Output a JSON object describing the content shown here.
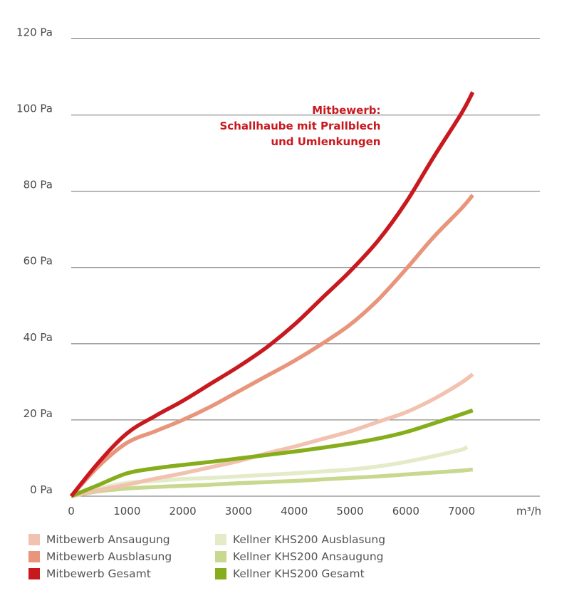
{
  "chart_data": {
    "type": "line",
    "title": "",
    "xlabel": "",
    "ylabel": "",
    "x_unit": "m³/h",
    "xlim": [
      0,
      7500
    ],
    "ylim": [
      -7,
      120
    ],
    "y_ticks": [
      {
        "value": 0,
        "label": "0 Pa"
      },
      {
        "value": 20,
        "label": "20 Pa"
      },
      {
        "value": 40,
        "label": "40 Pa"
      },
      {
        "value": 60,
        "label": "60 Pa"
      },
      {
        "value": 80,
        "label": "80 Pa"
      },
      {
        "value": 100,
        "label": "100 Pa"
      },
      {
        "value": 120,
        "label": "120 Pa"
      }
    ],
    "gridlines_y": [
      -7,
      13,
      33,
      53,
      73,
      93,
      113
    ],
    "x_ticks": [
      {
        "value": 0,
        "label": "0"
      },
      {
        "value": 1000,
        "label": "1000"
      },
      {
        "value": 2000,
        "label": "2000"
      },
      {
        "value": 3000,
        "label": "3000"
      },
      {
        "value": 4000,
        "label": "4000"
      },
      {
        "value": 5000,
        "label": "5000"
      },
      {
        "value": 6000,
        "label": "6000"
      },
      {
        "value": 7000,
        "label": "7000"
      }
    ],
    "grid": true,
    "legend_position": "bottom",
    "annotation": {
      "lines": [
        "Mitbewerb:",
        "Schallhaube mit Prallblech",
        "und Umlenkungen"
      ],
      "x": 5600,
      "y": 97
    },
    "series": [
      {
        "name": "Mitbewerb Ansaugung",
        "color": "#f2c2b0",
        "x": [
          0,
          500,
          1000,
          1500,
          2000,
          2500,
          3000,
          3500,
          4000,
          4500,
          5000,
          5500,
          6000,
          6500,
          7000,
          7200
        ],
        "y": [
          -7,
          -5.4,
          -4,
          -2.4,
          -1,
          0.6,
          2.2,
          4.2,
          6,
          8,
          10,
          12.5,
          15,
          18.5,
          22.8,
          25
        ]
      },
      {
        "name": "Mitbewerb Ausblasung",
        "color": "#e8957c",
        "x": [
          0,
          500,
          1000,
          1500,
          2000,
          2500,
          3000,
          3500,
          4000,
          4500,
          5000,
          5500,
          6000,
          6500,
          7000,
          7200
        ],
        "y": [
          -7,
          1,
          7,
          10,
          13,
          16.5,
          20.5,
          24.5,
          28.5,
          33,
          38,
          44.5,
          52.5,
          61,
          68.5,
          72
        ]
      },
      {
        "name": "Mitbewerb Gesamt",
        "color": "#c8191f",
        "x": [
          0,
          500,
          1000,
          1500,
          2000,
          2500,
          3000,
          3500,
          4000,
          4500,
          5000,
          5500,
          6000,
          6500,
          7000,
          7200
        ],
        "y": [
          -7,
          2,
          9.5,
          14,
          18,
          22.5,
          27,
          32,
          38,
          45,
          52,
          60,
          70,
          82,
          93.5,
          99
        ]
      },
      {
        "name": "Kellner KHS200 Ausblasung",
        "color": "#e4ebc8",
        "x": [
          0,
          500,
          1000,
          1500,
          2000,
          2500,
          3000,
          3500,
          4000,
          4500,
          5000,
          5500,
          6000,
          6500,
          7000,
          7100
        ],
        "y": [
          -7,
          -5,
          -3.5,
          -3,
          -2.5,
          -2.2,
          -1.8,
          -1.4,
          -1,
          -0.5,
          0,
          0.8,
          2,
          3.5,
          5.2,
          6
        ]
      },
      {
        "name": "Kellner KHS200 Ansaugung",
        "color": "#c8d88f",
        "x": [
          0,
          500,
          1000,
          1500,
          2000,
          2500,
          3000,
          3500,
          4000,
          4500,
          5000,
          5500,
          6000,
          6500,
          7000,
          7200
        ],
        "y": [
          -7,
          -5.7,
          -5,
          -4.6,
          -4.3,
          -4,
          -3.6,
          -3.3,
          -3,
          -2.6,
          -2.2,
          -1.8,
          -1.3,
          -0.8,
          -0.3,
          0
        ]
      },
      {
        "name": "Kellner KHS200 Gesamt",
        "color": "#86ad1c",
        "x": [
          0,
          500,
          1000,
          1500,
          2000,
          2500,
          3000,
          3500,
          4000,
          4500,
          5000,
          5500,
          6000,
          6500,
          7000,
          7200
        ],
        "y": [
          -7,
          -4,
          -1,
          0.3,
          1.2,
          2,
          2.9,
          3.8,
          4.7,
          5.7,
          6.8,
          8.1,
          9.8,
          12.1,
          14.5,
          15.5
        ]
      }
    ]
  }
}
